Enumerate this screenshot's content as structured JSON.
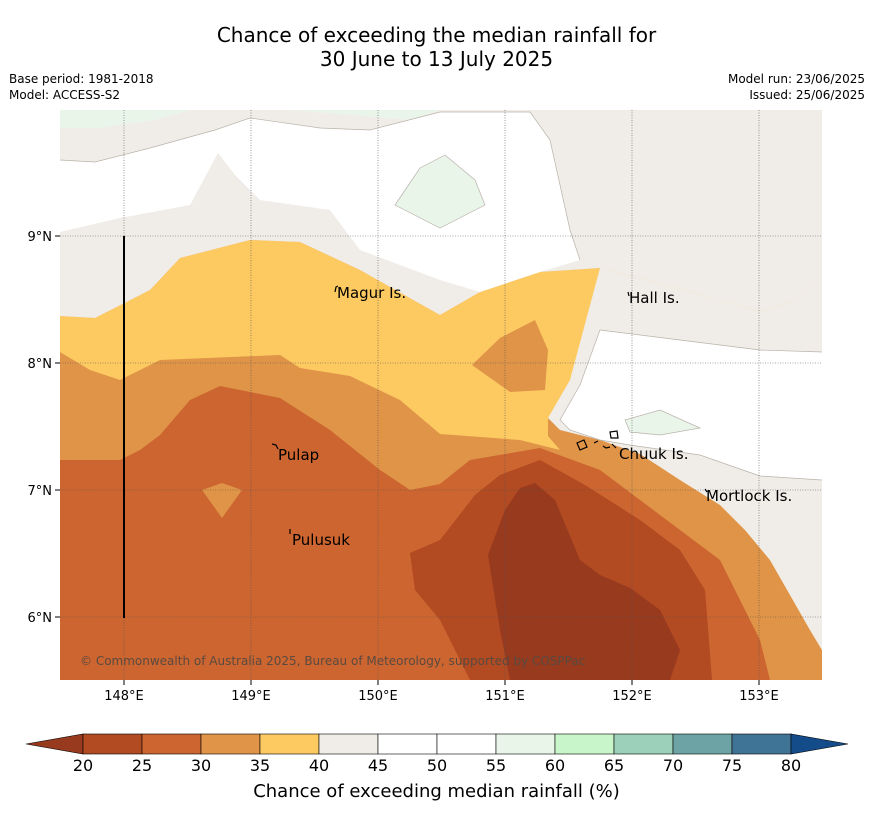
{
  "title": {
    "line1": "Chance of exceeding the median rainfall for",
    "line2": "30 June to 13 July 2025"
  },
  "meta": {
    "base_period": "Base period: 1981-2018",
    "model": "Model: ACCESS-S2",
    "model_run": "Model run: 23/06/2025",
    "issued": "Issued: 25/06/2025"
  },
  "axes": {
    "lon_ticks": [
      "148°E",
      "149°E",
      "150°E",
      "151°E",
      "152°E",
      "153°E"
    ],
    "lat_ticks": [
      "9°N",
      "8°N",
      "7°N",
      "6°N"
    ]
  },
  "places": [
    "Magur Is.",
    "Hall Is.",
    "Pulap",
    "Chuuk Is.",
    "Mortlock Is.",
    "Pulusuk"
  ],
  "copyright": "© Commonwealth of Australia 2025, Bureau of Meteorology, supported by COSPPac",
  "colorbar": {
    "title": "Chance of exceeding median rainfall (%)",
    "labels": [
      "20",
      "25",
      "30",
      "35",
      "40",
      "45",
      "50",
      "55",
      "60",
      "65",
      "70",
      "75",
      "80"
    ],
    "colors": [
      "#b24a22",
      "#cc6530",
      "#e09447",
      "#fdca62",
      "#f0ede8",
      "#ffffff",
      "#ffffff",
      "#eaf5ea",
      "#c8f5c9",
      "#9dd0ba",
      "#6ea3a6",
      "#3f7496"
    ],
    "under_color": "#973a1e",
    "over_color": "#144c8a"
  }
}
